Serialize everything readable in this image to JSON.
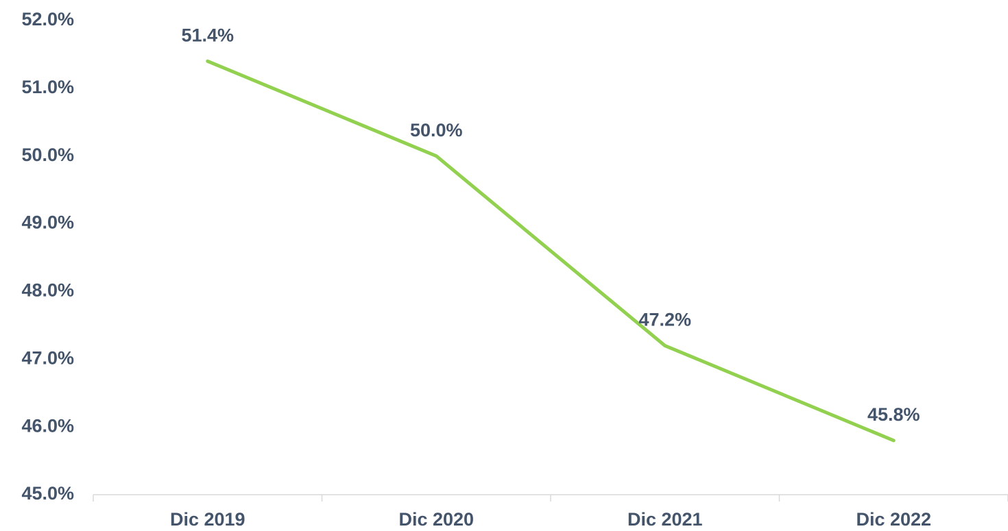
{
  "chart_data": {
    "type": "line",
    "categories": [
      "Dic 2019",
      "Dic 2020",
      "Dic 2021",
      "Dic 2022"
    ],
    "series": [
      {
        "color": "#92d050",
        "values": [
          51.4,
          50.0,
          47.2,
          45.8
        ],
        "value_labels": [
          "51.4%",
          "50.0%",
          "47.2%",
          "45.8%"
        ]
      }
    ],
    "ylim": [
      45,
      52
    ],
    "yticks": [
      {
        "value": 45,
        "label": "45.0%"
      },
      {
        "value": 46,
        "label": "46.0%"
      },
      {
        "value": 47,
        "label": "47.0%"
      },
      {
        "value": 48,
        "label": "48.0%"
      },
      {
        "value": 49,
        "label": "49.0%"
      },
      {
        "value": 50,
        "label": "50.0%"
      },
      {
        "value": 51,
        "label": "51.0%"
      },
      {
        "value": 52,
        "label": "52.0%"
      }
    ],
    "grid": false
  }
}
